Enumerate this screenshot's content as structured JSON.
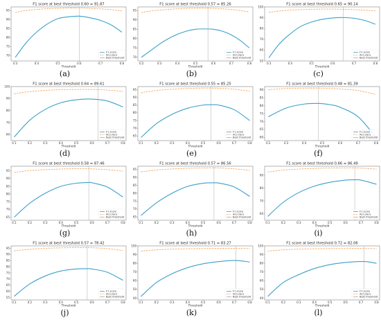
{
  "figure": {
    "xlabel": "Threshold",
    "legend": [
      "F1 score",
      "Accuracy",
      "Best threshold"
    ],
    "colors": {
      "f1": "#3a9fc9",
      "accuracy": "#f5a25d",
      "best": "#aaaaaa"
    }
  },
  "chart_data": [
    {
      "type": "line",
      "label": "(a)",
      "title": "F1 score at best threshold 0.60 = 91.87",
      "xlabel": "Threshold",
      "xlim": [
        0.28,
        0.82
      ],
      "xticks": [
        0.3,
        0.4,
        0.5,
        0.6,
        0.7,
        0.8
      ],
      "ylim": [
        67,
        97
      ],
      "yticks": [
        70,
        75,
        80,
        85,
        90,
        95
      ],
      "best_threshold": 0.6,
      "x": [
        0.3,
        0.35,
        0.4,
        0.45,
        0.5,
        0.55,
        0.6,
        0.65,
        0.7,
        0.75,
        0.8
      ],
      "series": [
        {
          "name": "F1 score",
          "values": [
            69,
            77,
            83,
            87.5,
            90.5,
            91.5,
            91.87,
            91,
            89.5,
            87,
            83
          ]
        },
        {
          "name": "Accuracy",
          "values": [
            94,
            95,
            95.6,
            96,
            96.2,
            96.4,
            96.4,
            96.2,
            95.9,
            95.5,
            94.8
          ]
        }
      ]
    },
    {
      "type": "line",
      "label": "(b)",
      "title": "F1 score at best threshold 0.57 = 85.26",
      "xlabel": "Threshold",
      "xlim": [
        0.18,
        0.82
      ],
      "xticks": [
        0.2,
        0.3,
        0.4,
        0.5,
        0.6,
        0.7,
        0.8
      ],
      "ylim": [
        68,
        97
      ],
      "yticks": [
        70,
        75,
        80,
        85,
        90,
        95
      ],
      "best_threshold": 0.57,
      "x": [
        0.2,
        0.25,
        0.3,
        0.35,
        0.4,
        0.45,
        0.5,
        0.55,
        0.6,
        0.65,
        0.7,
        0.75,
        0.8
      ],
      "series": [
        {
          "name": "F1 score",
          "values": [
            70,
            73.5,
            77,
            80,
            82.3,
            84,
            85,
            85.2,
            85,
            84,
            82,
            79,
            75
          ]
        },
        {
          "name": "Accuracy",
          "values": [
            94,
            94.8,
            95.3,
            95.7,
            96,
            96.2,
            96.3,
            96.3,
            96.2,
            96,
            95.6,
            95.1,
            94.3
          ]
        }
      ]
    },
    {
      "type": "line",
      "label": "(c)",
      "title": "F1 score at best threshold 0.65 = 90.14",
      "xlabel": "Threshold",
      "xlim": [
        0.28,
        0.82
      ],
      "xticks": [
        0.3,
        0.4,
        0.5,
        0.6,
        0.7,
        0.8
      ],
      "ylim": [
        50,
        100
      ],
      "yticks": [
        50,
        60,
        70,
        80,
        90,
        100
      ],
      "best_threshold": 0.65,
      "x": [
        0.3,
        0.35,
        0.4,
        0.45,
        0.5,
        0.55,
        0.6,
        0.65,
        0.7,
        0.75,
        0.8
      ],
      "series": [
        {
          "name": "F1 score",
          "values": [
            53,
            66,
            75,
            82,
            86,
            88.5,
            89.8,
            90.14,
            89.5,
            87.5,
            84
          ]
        },
        {
          "name": "Accuracy",
          "values": [
            95,
            96.2,
            97,
            97.5,
            97.8,
            98,
            98,
            97.8,
            97.5,
            97,
            96.3
          ]
        }
      ]
    },
    {
      "type": "line",
      "label": "(d)",
      "title": "F1 score at best threshold 0.64 = 89.61",
      "xlabel": "Threshold",
      "xlim": [
        0.08,
        0.82
      ],
      "xticks": [
        0.1,
        0.2,
        0.3,
        0.4,
        0.5,
        0.6,
        0.7,
        0.8
      ],
      "ylim": [
        55,
        100
      ],
      "yticks": [
        60,
        70,
        80,
        90,
        100
      ],
      "best_threshold": 0.64,
      "x": [
        0.1,
        0.2,
        0.3,
        0.4,
        0.5,
        0.6,
        0.7,
        0.8
      ],
      "series": [
        {
          "name": "F1 score",
          "values": [
            58,
            72,
            81,
            86.5,
            89,
            89.6,
            88,
            83
          ]
        },
        {
          "name": "Accuracy",
          "values": [
            94,
            95.8,
            96.8,
            97.4,
            97.6,
            97.6,
            97.1,
            96
          ]
        }
      ]
    },
    {
      "type": "line",
      "label": "(e)",
      "title": "F1 score at best threshold 0.55 = 85.25",
      "xlabel": "Threshold",
      "xlim": [
        0.08,
        0.82
      ],
      "xticks": [
        0.1,
        0.2,
        0.3,
        0.4,
        0.5,
        0.6,
        0.7,
        0.8
      ],
      "ylim": [
        62,
        97
      ],
      "yticks": [
        65,
        70,
        75,
        80,
        85,
        90,
        95
      ],
      "best_threshold": 0.55,
      "x": [
        0.1,
        0.2,
        0.3,
        0.4,
        0.5,
        0.55,
        0.6,
        0.7,
        0.8
      ],
      "series": [
        {
          "name": "F1 score",
          "values": [
            64,
            73,
            79,
            83,
            85,
            85.25,
            85,
            82,
            75
          ]
        },
        {
          "name": "Accuracy",
          "values": [
            93,
            94.5,
            95.3,
            95.8,
            96,
            96,
            95.9,
            95.3,
            94
          ]
        }
      ]
    },
    {
      "type": "line",
      "label": "(f)",
      "title": "F1 score at best threshold 0.48 = 81.39",
      "xlabel": "Threshold",
      "xlim": [
        0.18,
        0.82
      ],
      "xticks": [
        0.2,
        0.3,
        0.4,
        0.5,
        0.6,
        0.7,
        0.8
      ],
      "ylim": [
        58,
        92
      ],
      "yticks": [
        60,
        65,
        70,
        75,
        80,
        85,
        90
      ],
      "best_threshold": 0.48,
      "x": [
        0.2,
        0.3,
        0.4,
        0.48,
        0.55,
        0.6,
        0.7,
        0.8
      ],
      "series": [
        {
          "name": "F1 score",
          "values": [
            73,
            78.5,
            81,
            81.39,
            80.5,
            79,
            73,
            60
          ]
        },
        {
          "name": "Accuracy",
          "values": [
            90,
            90.8,
            91,
            91,
            90.8,
            90.5,
            89.5,
            87
          ]
        }
      ]
    },
    {
      "type": "line",
      "label": "(g)",
      "title": "F1 score at best threshold 0.58 = 87.46",
      "xlabel": "Threshold",
      "xlim": [
        0.08,
        0.82
      ],
      "xticks": [
        0.1,
        0.2,
        0.3,
        0.4,
        0.5,
        0.6,
        0.7,
        0.8
      ],
      "ylim": [
        63,
        98
      ],
      "yticks": [
        65,
        70,
        75,
        80,
        85,
        90,
        95
      ],
      "best_threshold": 0.58,
      "x": [
        0.1,
        0.2,
        0.3,
        0.4,
        0.5,
        0.58,
        0.6,
        0.7,
        0.8
      ],
      "series": [
        {
          "name": "F1 score",
          "values": [
            65,
            74,
            80.5,
            85,
            87,
            87.46,
            87.3,
            84.5,
            78
          ]
        },
        {
          "name": "Accuracy",
          "values": [
            94,
            95.2,
            95.8,
            96.2,
            96.4,
            96.4,
            96.3,
            95.8,
            94.8
          ]
        }
      ]
    },
    {
      "type": "line",
      "label": "(h)",
      "title": "F1 score at best threshold 0.57 = 86.56",
      "xlabel": "Threshold",
      "xlim": [
        0.08,
        0.82
      ],
      "xticks": [
        0.1,
        0.2,
        0.3,
        0.4,
        0.5,
        0.6,
        0.7,
        0.8
      ],
      "ylim": [
        63,
        97
      ],
      "yticks": [
        65,
        70,
        75,
        80,
        85,
        90,
        95
      ],
      "best_threshold": 0.57,
      "x": [
        0.1,
        0.2,
        0.3,
        0.4,
        0.5,
        0.57,
        0.6,
        0.7,
        0.8
      ],
      "series": [
        {
          "name": "F1 score",
          "values": [
            66,
            74,
            80,
            84.3,
            86.3,
            86.56,
            86.4,
            84,
            78
          ]
        },
        {
          "name": "Accuracy",
          "values": [
            93.5,
            94.6,
            95.3,
            95.7,
            95.9,
            96,
            95.9,
            95.4,
            94.4
          ]
        }
      ]
    },
    {
      "type": "line",
      "label": "(i)",
      "title": "F1 score at best threshold 0.66 = 86.49",
      "xlabel": "Threshold",
      "xlim": [
        0.08,
        0.82
      ],
      "xticks": [
        0.1,
        0.2,
        0.3,
        0.4,
        0.5,
        0.6,
        0.7,
        0.8
      ],
      "ylim": [
        55,
        97
      ],
      "yticks": [
        60,
        70,
        80,
        90
      ],
      "best_threshold": 0.66,
      "x": [
        0.1,
        0.2,
        0.3,
        0.4,
        0.5,
        0.6,
        0.66,
        0.7,
        0.8
      ],
      "series": [
        {
          "name": "F1 score",
          "values": [
            58,
            69,
            76.5,
            81.5,
            84.5,
            86.2,
            86.49,
            86.2,
            83
          ]
        },
        {
          "name": "Accuracy",
          "values": [
            92.5,
            94,
            94.8,
            95.3,
            95.6,
            95.7,
            95.7,
            95.5,
            94.8
          ]
        }
      ]
    },
    {
      "type": "line",
      "label": "(j)",
      "title": "F1 score at best threshold 0.57 = 78.42",
      "xlabel": "Threshold",
      "xlim": [
        0.08,
        0.82
      ],
      "xticks": [
        0.1,
        0.2,
        0.3,
        0.4,
        0.5,
        0.6,
        0.7,
        0.8
      ],
      "ylim": [
        53,
        97
      ],
      "yticks": [
        55,
        60,
        65,
        70,
        75,
        80,
        85,
        90,
        95
      ],
      "best_threshold": 0.57,
      "x": [
        0.1,
        0.2,
        0.3,
        0.4,
        0.5,
        0.57,
        0.6,
        0.7,
        0.8
      ],
      "series": [
        {
          "name": "F1 score",
          "values": [
            56,
            66,
            72.5,
            76.5,
            78.2,
            78.42,
            78.2,
            75.5,
            69
          ]
        },
        {
          "name": "Accuracy",
          "values": [
            93,
            94.2,
            95,
            95.4,
            95.6,
            95.6,
            95.5,
            94.8,
            93.2
          ]
        }
      ]
    },
    {
      "type": "line",
      "label": "(k)",
      "title": "F1 score at best threshold 0.71 = 83.27",
      "xlabel": "Threshold",
      "xlim": [
        0.08,
        0.82
      ],
      "xticks": [
        0.1,
        0.2,
        0.3,
        0.4,
        0.5,
        0.6,
        0.7,
        0.8
      ],
      "ylim": [
        38,
        100
      ],
      "yticks": [
        40,
        50,
        60,
        70,
        80,
        90,
        100
      ],
      "best_threshold": 0.71,
      "x": [
        0.1,
        0.2,
        0.3,
        0.4,
        0.5,
        0.6,
        0.71,
        0.8
      ],
      "series": [
        {
          "name": "F1 score",
          "values": [
            42,
            58,
            68,
            75,
            79.5,
            82,
            83.27,
            81.5
          ]
        },
        {
          "name": "Accuracy",
          "values": [
            94,
            95.5,
            96.3,
            96.7,
            97,
            97.2,
            97.2,
            96.9
          ]
        }
      ]
    },
    {
      "type": "line",
      "label": "(l)",
      "title": "F1 score at best threshold 0.72 = 82.06",
      "xlabel": "Threshold",
      "xlim": [
        0.08,
        0.82
      ],
      "xticks": [
        0.1,
        0.2,
        0.3,
        0.4,
        0.5,
        0.6,
        0.7,
        0.8
      ],
      "ylim": [
        38,
        100
      ],
      "yticks": [
        40,
        50,
        60,
        70,
        80,
        90,
        100
      ],
      "best_threshold": 0.72,
      "x": [
        0.1,
        0.2,
        0.3,
        0.4,
        0.5,
        0.6,
        0.72,
        0.8
      ],
      "series": [
        {
          "name": "F1 score",
          "values": [
            42,
            58,
            67,
            74,
            78.5,
            81,
            82.06,
            80
          ]
        },
        {
          "name": "Accuracy",
          "values": [
            94,
            95.5,
            96.3,
            96.7,
            97,
            97.1,
            97.1,
            96.8
          ]
        }
      ]
    }
  ]
}
